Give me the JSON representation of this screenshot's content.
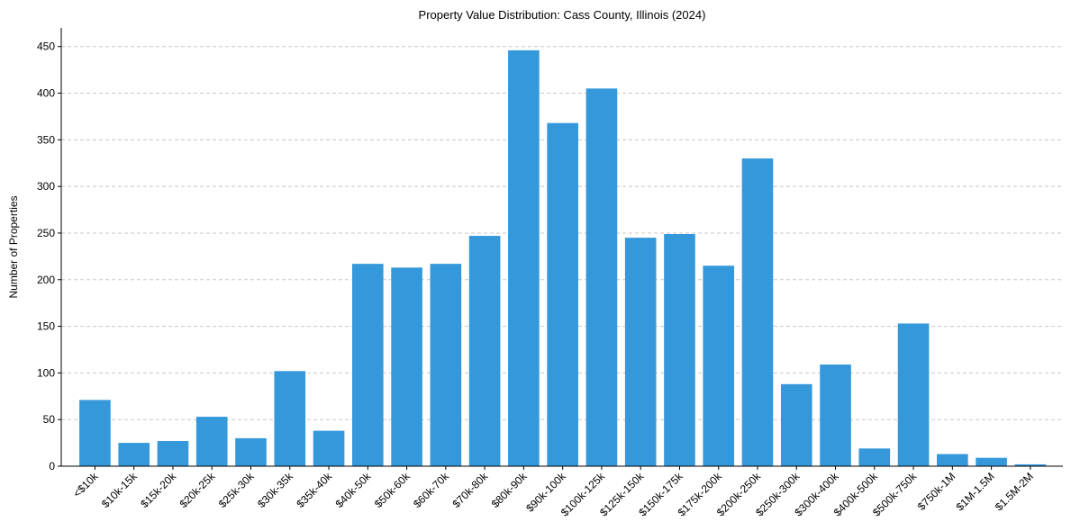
{
  "chart_data": {
    "type": "bar",
    "title": "Property Value Distribution: Cass County, Illinois (2024)",
    "xlabel": "",
    "ylabel": "Number of Properties",
    "ylim": [
      0,
      470
    ],
    "yticks": [
      0,
      50,
      100,
      150,
      200,
      250,
      300,
      350,
      400,
      450
    ],
    "grid": "y-dashed",
    "color": "#3498db",
    "categories": [
      "<$10k",
      "$10k-15k",
      "$15k-20k",
      "$20k-25k",
      "$25k-30k",
      "$30k-35k",
      "$35k-40k",
      "$40k-50k",
      "$50k-60k",
      "$60k-70k",
      "$70k-80k",
      "$80k-90k",
      "$90k-100k",
      "$100k-125k",
      "$125k-150k",
      "$150k-175k",
      "$175k-200k",
      "$200k-250k",
      "$250k-300k",
      "$300k-400k",
      "$400k-500k",
      "$500k-750k",
      "$750k-1M",
      "$1M-1.5M",
      "$1.5M-2M"
    ],
    "values": [
      71,
      25,
      27,
      53,
      30,
      102,
      38,
      217,
      213,
      217,
      247,
      446,
      368,
      405,
      245,
      249,
      215,
      330,
      88,
      109,
      19,
      153,
      13,
      9,
      2
    ]
  }
}
